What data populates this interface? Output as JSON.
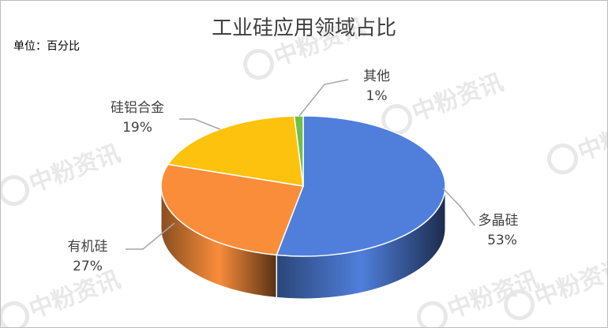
{
  "chart_data": {
    "type": "pie",
    "style": "3d",
    "title": "工业硅应用领域占比",
    "unit_note": "单位：百分比",
    "start": "top",
    "direction": "clockwise",
    "slices": [
      {
        "label": "多晶硅",
        "value": 53,
        "value_label": "53%",
        "color": "#4f7fdb"
      },
      {
        "label": "有机硅",
        "value": 27,
        "value_label": "27%",
        "color": "#f98d3a"
      },
      {
        "label": "硅铝合金",
        "value": 19,
        "value_label": "19%",
        "color": "#fdc20d"
      },
      {
        "label": "其他",
        "value": 1,
        "value_label": "1%",
        "color": "#6fbf4a"
      }
    ],
    "legend": "none"
  },
  "watermark": "中粉资讯"
}
